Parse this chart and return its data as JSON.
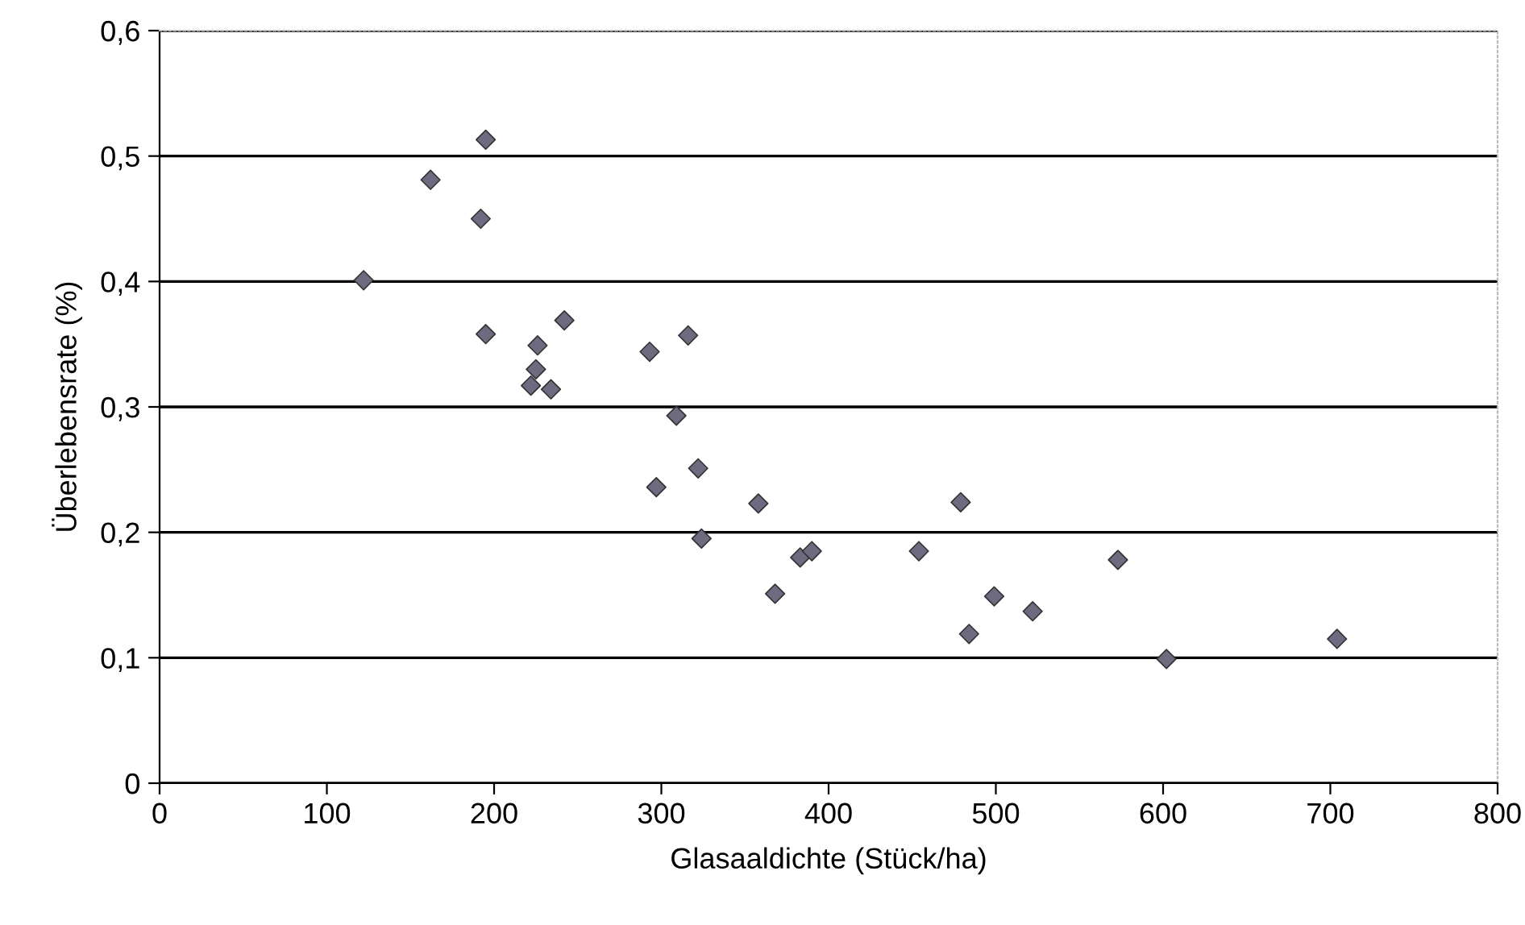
{
  "chart_data": {
    "type": "scatter",
    "xlabel": "Glasaaldichte (Stück/ha)",
    "ylabel": "Überlebensrate (%)",
    "x": [
      195,
      162,
      192,
      122,
      195,
      242,
      226,
      293,
      316,
      225,
      222,
      234,
      309,
      322,
      297,
      324,
      358,
      479,
      383,
      390,
      454,
      368,
      484,
      573,
      499,
      522,
      602,
      704
    ],
    "series": [
      {
        "color": "#6e6a80",
        "values": [
          0.513,
          0.481,
          0.45,
          0.401,
          0.358,
          0.369,
          0.349,
          0.344,
          0.357,
          0.33,
          0.317,
          0.314,
          0.293,
          0.251,
          0.236,
          0.195,
          0.223,
          0.224,
          0.18,
          0.185,
          0.185,
          0.151,
          0.119,
          0.178,
          0.149,
          0.137,
          0.099,
          0.115
        ]
      }
    ],
    "xlim": [
      0,
      800
    ],
    "xticks": [
      0,
      100,
      200,
      300,
      400,
      500,
      600,
      700,
      800
    ],
    "ylim": [
      0,
      0.6
    ],
    "yticks": [
      {
        "value": 0,
        "label": "0"
      },
      {
        "value": 0.1,
        "label": "0,1"
      },
      {
        "value": 0.2,
        "label": "0,2"
      },
      {
        "value": 0.3,
        "label": "0,3"
      },
      {
        "value": 0.4,
        "label": "0,4"
      },
      {
        "value": 0.5,
        "label": "0,5"
      },
      {
        "value": 0.6,
        "label": "0,6"
      }
    ],
    "grid": "y",
    "marker": "diamond"
  }
}
